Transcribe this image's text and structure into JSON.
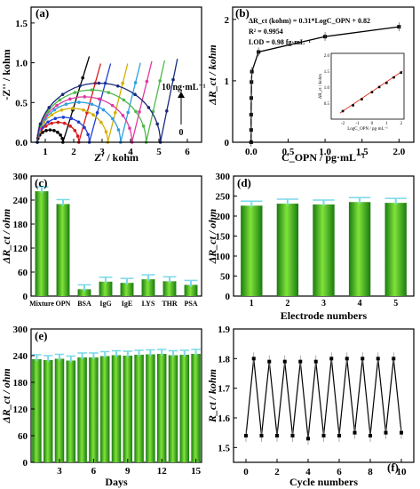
{
  "chart_data": [
    {
      "panel_label": "(a)",
      "type": "line",
      "xlabel": "Z' / kohm",
      "ylabel": "-Z'' / kohm",
      "xlim": [
        0.5,
        6.5
      ],
      "ylim": [
        0,
        1.7
      ],
      "xticks": [
        1,
        2,
        3,
        4,
        5,
        6
      ],
      "yticks": [
        0.0,
        0.5,
        1.0,
        1.5
      ],
      "annotations": [
        "10 ng·mL⁻¹",
        "0"
      ],
      "arc_start": 0.72,
      "series": [
        {
          "color": "#000000",
          "arc_end": 1.62,
          "tail_end_x": 2.55,
          "tail_end_y": 1.08
        },
        {
          "color": "#d81b1b",
          "arc_end": 2.18,
          "tail_end_x": 2.95,
          "tail_end_y": 0.99
        },
        {
          "color": "#1f3fd1",
          "arc_end": 2.55,
          "tail_end_x": 3.3,
          "tail_end_y": 0.99
        },
        {
          "color": "#d4b000",
          "arc_end": 3.2,
          "tail_end_x": 3.9,
          "tail_end_y": 0.99
        },
        {
          "color": "#2e9fe0",
          "arc_end": 3.65,
          "tail_end_x": 4.35,
          "tail_end_y": 1.0
        },
        {
          "color": "#e03aa0",
          "arc_end": 4.05,
          "tail_end_x": 4.75,
          "tail_end_y": 1.02
        },
        {
          "color": "#4fb84a",
          "arc_end": 4.55,
          "tail_end_x": 5.2,
          "tail_end_y": 1.03
        },
        {
          "color": "#1b2a7a",
          "arc_end": 5.05,
          "tail_end_x": 5.65,
          "tail_end_y": 1.05
        }
      ]
    },
    {
      "panel_label": "(b)",
      "type": "line",
      "xlabel": "C_OPN / pg·mL⁻¹",
      "ylabel": "ΔR_ct / kohm",
      "xlim": [
        -0.25,
        2.2
      ],
      "ylim": [
        0,
        2.2
      ],
      "xticks": [
        0.0,
        0.5,
        1.0,
        1.5,
        2.0
      ],
      "yticks": [
        0,
        1,
        2
      ],
      "x": [
        0.0,
        0.0,
        0.0,
        0.002,
        0.005,
        0.01,
        0.1,
        1.0,
        2.0
      ],
      "y": [
        0.0,
        0.2,
        0.45,
        0.72,
        0.98,
        1.15,
        1.47,
        1.72,
        1.88
      ],
      "text_equation": "ΔR_ct (kohm) = 0.31*LogC_OPN + 0.82",
      "text_r2": "R² = 0.9954",
      "text_lod": "LOD = 0.98 fg·mL⁻¹",
      "inset": {
        "xlabel": "LogC_OPN / pg·mL⁻¹",
        "ylabel": "ΔR_ct / kohm",
        "xticks": [
          -2,
          -1,
          0,
          1,
          2
        ],
        "yticks": [
          0.5,
          1.0,
          1.5,
          2.0
        ],
        "xlim": [
          -2.8,
          2.2
        ],
        "ylim": [
          0,
          2.05
        ],
        "x": [
          -2.0,
          -1.3,
          -0.7,
          0.0,
          0.5,
          1.0,
          1.5,
          2.0
        ],
        "y": [
          0.25,
          0.43,
          0.62,
          0.84,
          1.0,
          1.13,
          1.3,
          1.45
        ]
      }
    },
    {
      "panel_label": "(c)",
      "type": "bar",
      "ylabel": "ΔR_ct / ohm",
      "ylim": [
        0,
        300
      ],
      "yticks": [
        0,
        60,
        120,
        180,
        240,
        300
      ],
      "categories": [
        "Mixture",
        "OPN",
        "BSA",
        "IgG",
        "IgE",
        "LYS",
        "THR",
        "PSA"
      ],
      "values": [
        262,
        230,
        17,
        36,
        33,
        42,
        37,
        28
      ]
    },
    {
      "panel_label": "(d)",
      "type": "bar",
      "xlabel": "Electrode numbers",
      "ylabel": "ΔR_ct / ohm",
      "ylim": [
        0,
        300
      ],
      "yticks": [
        0,
        50,
        100,
        150,
        200,
        250,
        300
      ],
      "categories": [
        "1",
        "2",
        "3",
        "4",
        "5"
      ],
      "values": [
        226,
        231,
        229,
        235,
        233
      ]
    },
    {
      "panel_label": "(e)",
      "type": "bar",
      "xlabel": "Days",
      "ylabel": "ΔR_ct / ohm",
      "ylim": [
        0,
        300
      ],
      "yticks": [
        0,
        60,
        120,
        180,
        240,
        300
      ],
      "xticks": [
        3,
        6,
        9,
        12,
        15
      ],
      "categories": [
        "1",
        "2",
        "3",
        "4",
        "5",
        "6",
        "7",
        "8",
        "9",
        "10",
        "11",
        "12",
        "13",
        "14",
        "15"
      ],
      "values": [
        232,
        230,
        233,
        229,
        236,
        236,
        239,
        241,
        240,
        242,
        243,
        244,
        241,
        242,
        244
      ]
    },
    {
      "panel_label": "(f)",
      "type": "line",
      "xlabel": "Cycle numbers",
      "ylabel": "R_ct / kohm",
      "xlim": [
        -0.8,
        10.8
      ],
      "ylim": [
        1.45,
        1.9
      ],
      "xticks": [
        0,
        2,
        4,
        6,
        8,
        10
      ],
      "yticks": [
        1.5,
        1.6,
        1.7,
        1.8,
        1.9
      ],
      "x": [
        0,
        0.5,
        1,
        1.5,
        2,
        2.5,
        3,
        3.5,
        4,
        4.5,
        5,
        5.5,
        6,
        6.5,
        7,
        7.5,
        8,
        8.5,
        9,
        9.5,
        10
      ],
      "y": [
        1.54,
        1.8,
        1.54,
        1.79,
        1.54,
        1.79,
        1.54,
        1.79,
        1.53,
        1.79,
        1.54,
        1.8,
        1.54,
        1.8,
        1.55,
        1.8,
        1.54,
        1.8,
        1.55,
        1.8,
        1.55
      ]
    }
  ]
}
